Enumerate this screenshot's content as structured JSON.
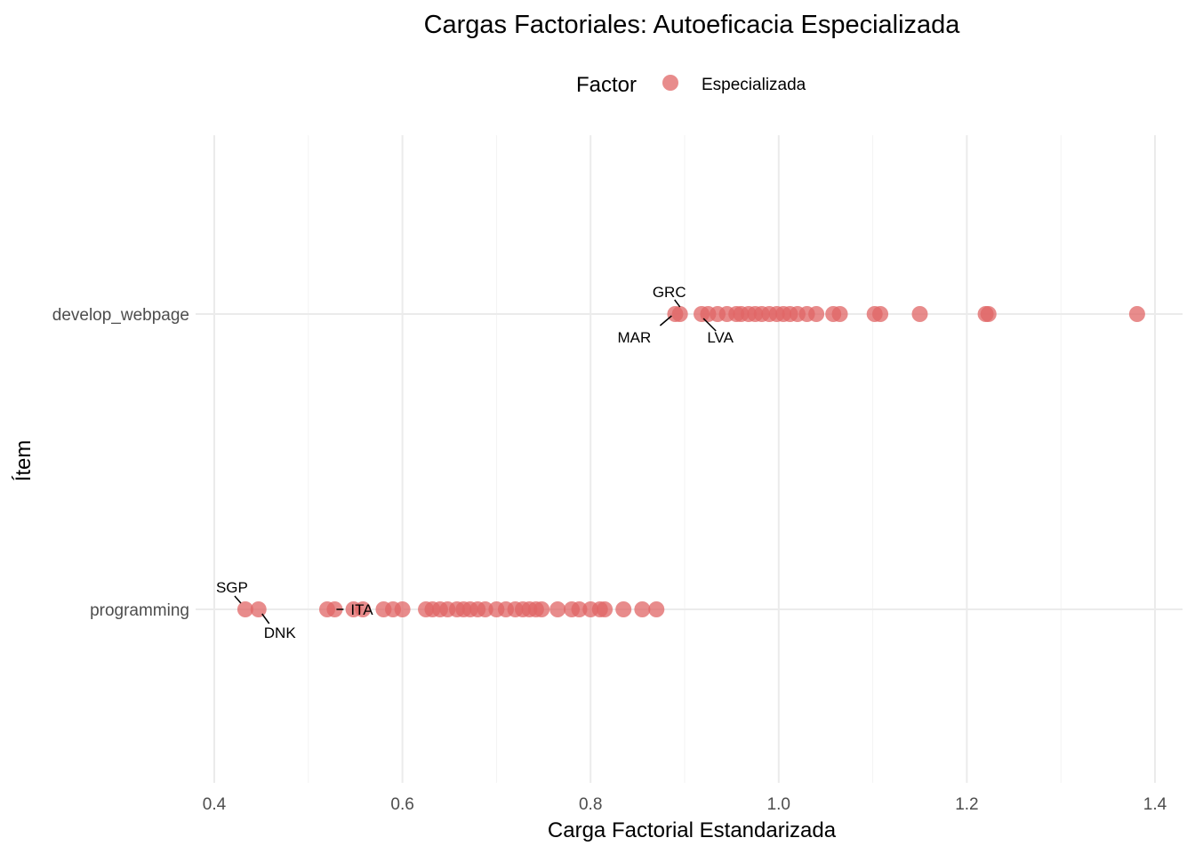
{
  "chart_data": {
    "type": "scatter",
    "title": "Cargas Factoriales: Autoeficacia Especializada",
    "xlabel": "Carga Factorial Estandarizada",
    "ylabel": "Ítem",
    "xlim": [
      0.4,
      1.4
    ],
    "x_ticks": [
      "0.4",
      "0.6",
      "0.8",
      "1.0",
      "1.2",
      "1.4"
    ],
    "categories": [
      "develop_webpage",
      "programming"
    ],
    "grid": true,
    "legend": {
      "title": "Factor",
      "position": "top",
      "entries": [
        {
          "label": "Especializada",
          "color": "#e06666"
        }
      ]
    },
    "series": [
      {
        "name": "Especializada",
        "color": "#e06666",
        "points": [
          {
            "item": "develop_webpage",
            "x": 0.89
          },
          {
            "item": "develop_webpage",
            "x": 0.895
          },
          {
            "item": "develop_webpage",
            "x": 0.918
          },
          {
            "item": "develop_webpage",
            "x": 0.925
          },
          {
            "item": "develop_webpage",
            "x": 0.935
          },
          {
            "item": "develop_webpage",
            "x": 0.945
          },
          {
            "item": "develop_webpage",
            "x": 0.955
          },
          {
            "item": "develop_webpage",
            "x": 0.96
          },
          {
            "item": "develop_webpage",
            "x": 0.968
          },
          {
            "item": "develop_webpage",
            "x": 0.975
          },
          {
            "item": "develop_webpage",
            "x": 0.982
          },
          {
            "item": "develop_webpage",
            "x": 0.99
          },
          {
            "item": "develop_webpage",
            "x": 0.998
          },
          {
            "item": "develop_webpage",
            "x": 1.005
          },
          {
            "item": "develop_webpage",
            "x": 1.012
          },
          {
            "item": "develop_webpage",
            "x": 1.02
          },
          {
            "item": "develop_webpage",
            "x": 1.03
          },
          {
            "item": "develop_webpage",
            "x": 1.04
          },
          {
            "item": "develop_webpage",
            "x": 1.058
          },
          {
            "item": "develop_webpage",
            "x": 1.065
          },
          {
            "item": "develop_webpage",
            "x": 1.102
          },
          {
            "item": "develop_webpage",
            "x": 1.108
          },
          {
            "item": "develop_webpage",
            "x": 1.15
          },
          {
            "item": "develop_webpage",
            "x": 1.22
          },
          {
            "item": "develop_webpage",
            "x": 1.223
          },
          {
            "item": "develop_webpage",
            "x": 1.381
          },
          {
            "item": "programming",
            "x": 0.433
          },
          {
            "item": "programming",
            "x": 0.447
          },
          {
            "item": "programming",
            "x": 0.52
          },
          {
            "item": "programming",
            "x": 0.528
          },
          {
            "item": "programming",
            "x": 0.548
          },
          {
            "item": "programming",
            "x": 0.558
          },
          {
            "item": "programming",
            "x": 0.58
          },
          {
            "item": "programming",
            "x": 0.59
          },
          {
            "item": "programming",
            "x": 0.6
          },
          {
            "item": "programming",
            "x": 0.625
          },
          {
            "item": "programming",
            "x": 0.632
          },
          {
            "item": "programming",
            "x": 0.64
          },
          {
            "item": "programming",
            "x": 0.648
          },
          {
            "item": "programming",
            "x": 0.658
          },
          {
            "item": "programming",
            "x": 0.665
          },
          {
            "item": "programming",
            "x": 0.672
          },
          {
            "item": "programming",
            "x": 0.68
          },
          {
            "item": "programming",
            "x": 0.688
          },
          {
            "item": "programming",
            "x": 0.7
          },
          {
            "item": "programming",
            "x": 0.71
          },
          {
            "item": "programming",
            "x": 0.72
          },
          {
            "item": "programming",
            "x": 0.728
          },
          {
            "item": "programming",
            "x": 0.735
          },
          {
            "item": "programming",
            "x": 0.742
          },
          {
            "item": "programming",
            "x": 0.748
          },
          {
            "item": "programming",
            "x": 0.765
          },
          {
            "item": "programming",
            "x": 0.78
          },
          {
            "item": "programming",
            "x": 0.788
          },
          {
            "item": "programming",
            "x": 0.8
          },
          {
            "item": "programming",
            "x": 0.81
          },
          {
            "item": "programming",
            "x": 0.815
          },
          {
            "item": "programming",
            "x": 0.835
          },
          {
            "item": "programming",
            "x": 0.855
          },
          {
            "item": "programming",
            "x": 0.87
          }
        ]
      }
    ],
    "annotations": [
      {
        "label": "GRC",
        "item": "develop_webpage",
        "x": 0.895
      },
      {
        "label": "MAR",
        "item": "develop_webpage",
        "x": 0.89
      },
      {
        "label": "LVA",
        "item": "develop_webpage",
        "x": 0.92
      },
      {
        "label": "SGP",
        "item": "programming",
        "x": 0.433
      },
      {
        "label": "DNK",
        "item": "programming",
        "x": 0.447
      },
      {
        "label": "ITA",
        "item": "programming",
        "x": 0.528
      }
    ]
  }
}
